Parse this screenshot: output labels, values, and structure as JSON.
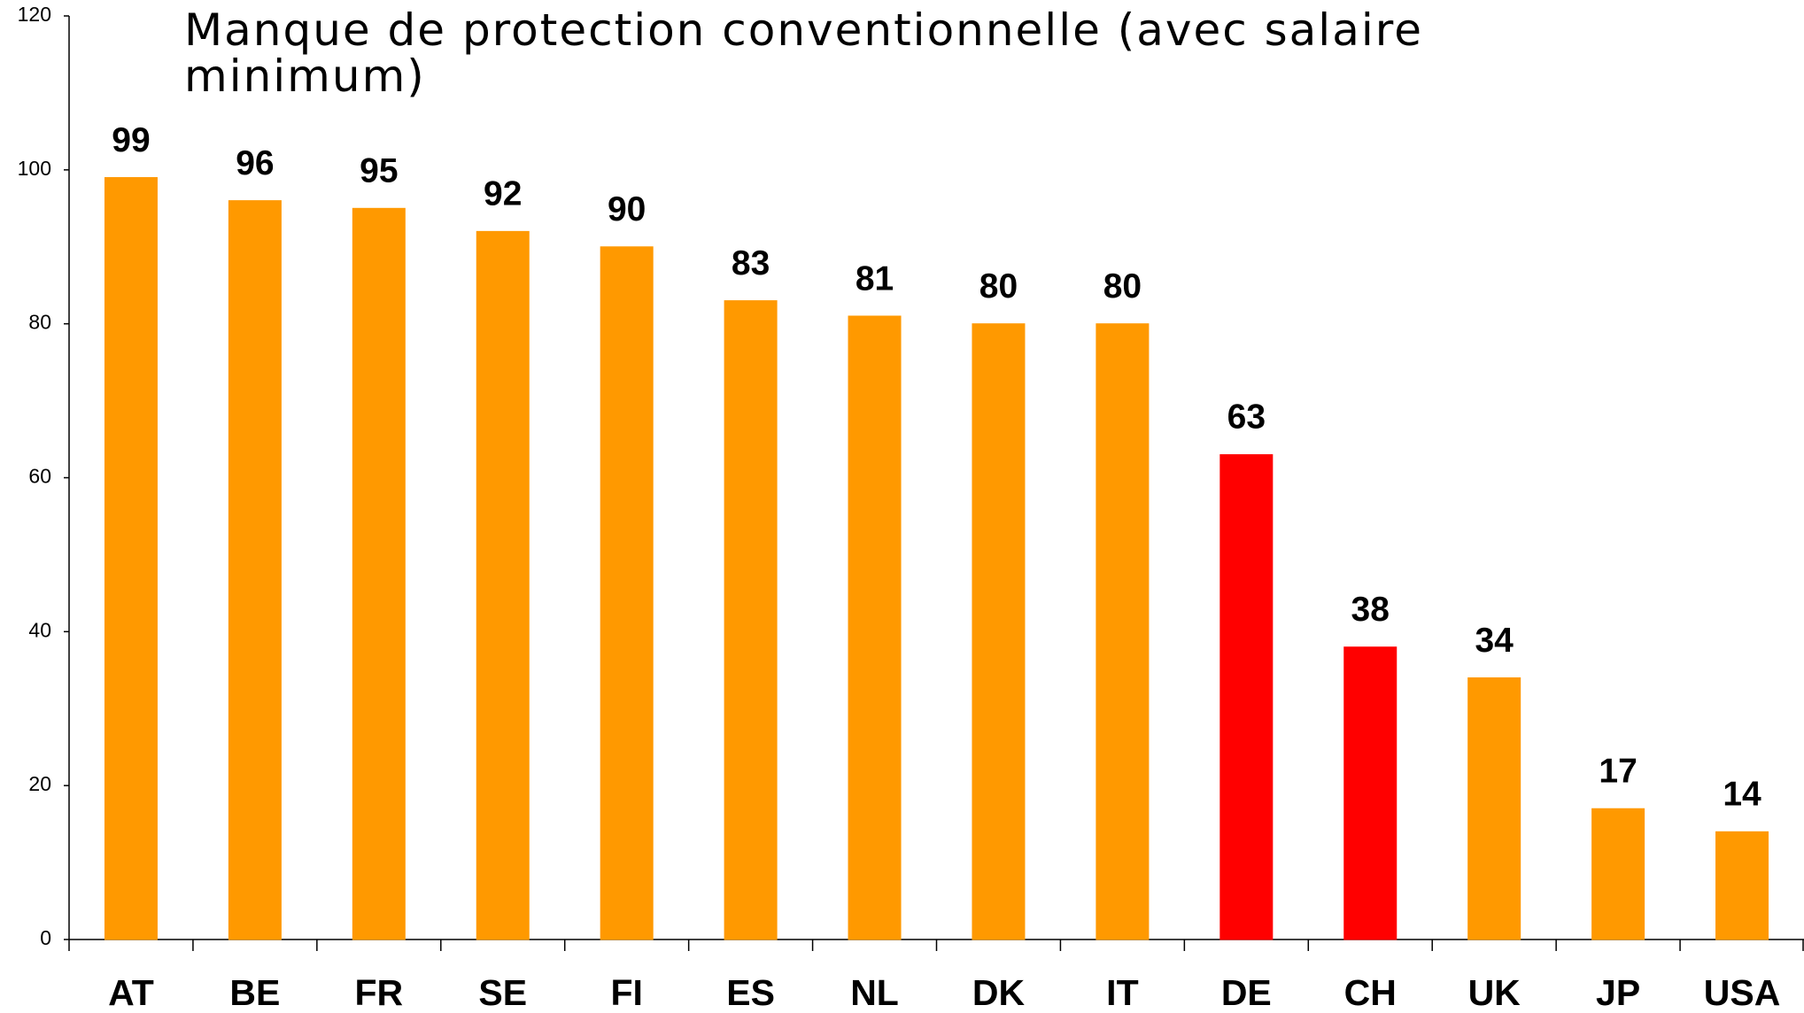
{
  "chart_data": {
    "type": "bar",
    "title": "Manque de protection conventionnelle (avec salaire minimum)",
    "categories": [
      "AT",
      "BE",
      "FR",
      "SE",
      "FI",
      "ES",
      "NL",
      "DK",
      "IT",
      "DE",
      "CH",
      "UK",
      "JP",
      "USA"
    ],
    "values": [
      99,
      96,
      95,
      92,
      90,
      83,
      81,
      80,
      80,
      63,
      38,
      34,
      17,
      14
    ],
    "colors": [
      "#ff9900",
      "#ff9900",
      "#ff9900",
      "#ff9900",
      "#ff9900",
      "#ff9900",
      "#ff9900",
      "#ff9900",
      "#ff9900",
      "#ff0000",
      "#ff0000",
      "#ff9900",
      "#ff9900",
      "#ff9900"
    ],
    "ylim": [
      0,
      120
    ],
    "yticks": [
      0,
      20,
      40,
      60,
      80,
      100,
      120
    ],
    "grid": false
  }
}
